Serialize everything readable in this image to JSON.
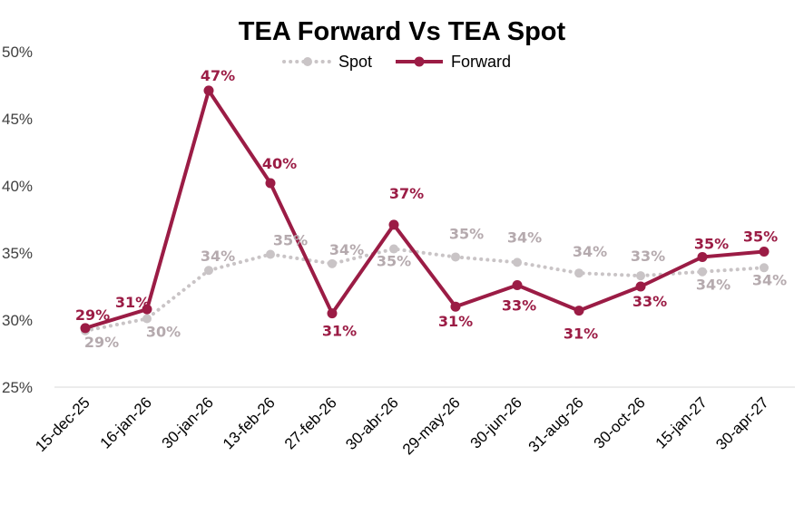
{
  "chart_data": {
    "type": "line",
    "title": "TEA Forward Vs TEA Spot",
    "xlabel": "",
    "ylabel": "",
    "ylim": [
      25,
      50
    ],
    "yticks": [
      "25%",
      "30%",
      "35%",
      "40%",
      "45%",
      "50%"
    ],
    "categories": [
      "15-dec-25",
      "16-jan-26",
      "30-jan-26",
      "13-feb-26",
      "27-feb-26",
      "30-abr-26",
      "29-may-26",
      "30-jun-26",
      "31-aug-26",
      "30-oct-26",
      "15-jan-27",
      "30-apr-27"
    ],
    "legend_position": "top-center",
    "series": [
      {
        "name": "Spot",
        "color": "#c9c4c6",
        "label_color": "#b5aaae",
        "style": "dotted",
        "values": [
          29.2,
          30.1,
          33.7,
          34.9,
          34.2,
          35.3,
          34.7,
          34.3,
          33.5,
          33.3,
          33.6,
          33.9
        ],
        "labels": [
          "29%",
          "30%",
          "34%",
          "35%",
          "34%",
          "35%",
          "35%",
          "34%",
          "34%",
          "33%",
          "34%",
          "34%"
        ]
      },
      {
        "name": "Forward",
        "color": "#9b1c45",
        "label_color": "#9b1c45",
        "style": "solid",
        "values": [
          29.4,
          30.8,
          47.1,
          40.2,
          30.5,
          37.1,
          31.0,
          32.6,
          30.7,
          32.5,
          34.7,
          35.1
        ],
        "labels": [
          "29%",
          "31%",
          "47%",
          "40%",
          "31%",
          "37%",
          "31%",
          "33%",
          "31%",
          "33%",
          "35%",
          "35%"
        ]
      }
    ]
  }
}
